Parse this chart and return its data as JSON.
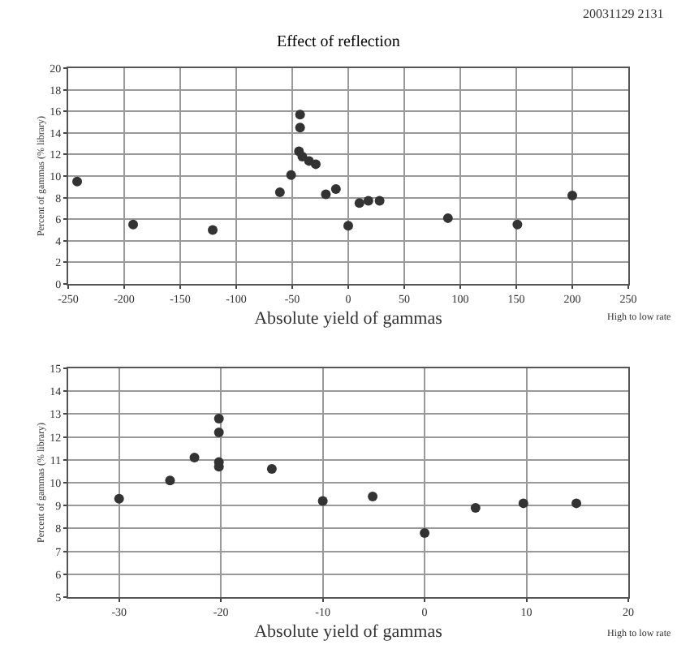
{
  "chart_data": [
    {
      "type": "scatter",
      "title": "Effect of reflection",
      "annotations": [
        "20031129 2131",
        "High to low rate"
      ],
      "xlabel": "Absolute yield of gammas",
      "ylabel": "Percent of gammas (% library)",
      "x": [
        -242,
        -192,
        -121,
        -61,
        -51,
        -43,
        -43,
        -44,
        -41,
        -35,
        -29,
        -20,
        -11,
        0,
        10,
        18,
        28,
        89,
        151,
        200
      ],
      "series": [
        {
          "color": "#333333",
          "values": [
            9.5,
            5.5,
            5.0,
            8.5,
            10.1,
            15.7,
            14.5,
            12.3,
            11.8,
            11.4,
            11.1,
            8.3,
            8.8,
            5.4,
            7.5,
            7.7,
            7.7,
            6.1,
            5.5,
            8.2
          ]
        }
      ],
      "xlim": [
        -250,
        250
      ],
      "xticks": [
        -250,
        -200,
        -150,
        -100,
        -50,
        0,
        50,
        100,
        150,
        200,
        250
      ],
      "ylim": [
        0,
        20
      ],
      "yticks": [
        0,
        2,
        4,
        6,
        8,
        10,
        12,
        14,
        16,
        18,
        20
      ],
      "grid": true,
      "marker": "circle"
    },
    {
      "type": "scatter",
      "annotations": [
        "High to low rate"
      ],
      "xlabel": "Absolute yield of gammas",
      "ylabel": "Percent of gammas (% library)",
      "x": [
        -30,
        -25,
        -22.6,
        -20.2,
        -20.2,
        -20.2,
        -20.2,
        -15,
        -10,
        -5.1,
        0,
        5,
        9.7,
        14.9
      ],
      "series": [
        {
          "color": "#333333",
          "values": [
            9.3,
            10.1,
            11.1,
            12.8,
            12.2,
            10.9,
            10.7,
            10.6,
            9.2,
            9.4,
            7.8,
            8.9,
            9.1,
            9.1
          ]
        }
      ],
      "xlim": [
        -35,
        20
      ],
      "xticks": [
        -30,
        -20,
        -10,
        0,
        10,
        20
      ],
      "ylim": [
        5,
        15
      ],
      "yticks": [
        5,
        6,
        7,
        8,
        9,
        10,
        11,
        12,
        13,
        14,
        15
      ],
      "grid": true,
      "marker": "circle"
    }
  ]
}
